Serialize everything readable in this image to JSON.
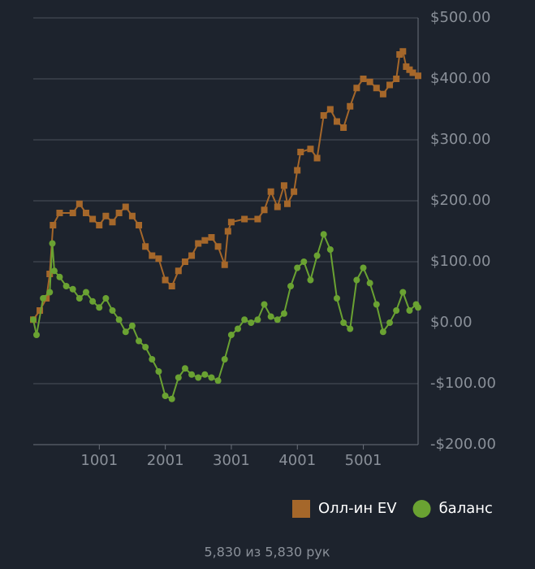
{
  "chart_data": {
    "type": "line",
    "xlim": [
      1,
      5830
    ],
    "ylim": [
      -200,
      500
    ],
    "xticks": [
      1001,
      2001,
      3001,
      4001,
      5001
    ],
    "yticks": [
      {
        "value": -200,
        "label": "-$200.00"
      },
      {
        "value": -100,
        "label": "-$100.00"
      },
      {
        "value": 0,
        "label": "$0.00"
      },
      {
        "value": 100,
        "label": "$100.00"
      },
      {
        "value": 200,
        "label": "$200.00"
      },
      {
        "value": 300,
        "label": "$300.00"
      },
      {
        "value": 400,
        "label": "$400.00"
      },
      {
        "value": 500,
        "label": "$500.00"
      }
    ],
    "grid": true,
    "legend": "bottom-right",
    "series": [
      {
        "name": "Олл-ин EV",
        "color": "#a5672a",
        "marker": "square",
        "x": [
          1,
          100,
          200,
          250,
          300,
          400,
          600,
          700,
          800,
          900,
          1000,
          1100,
          1200,
          1300,
          1400,
          1500,
          1600,
          1700,
          1800,
          1900,
          2000,
          2100,
          2200,
          2300,
          2400,
          2500,
          2600,
          2700,
          2800,
          2900,
          2950,
          3000,
          3200,
          3400,
          3500,
          3600,
          3700,
          3800,
          3850,
          3950,
          4000,
          4050,
          4200,
          4300,
          4400,
          4500,
          4600,
          4700,
          4800,
          4900,
          5000,
          5100,
          5200,
          5300,
          5400,
          5500,
          5550,
          5600,
          5650,
          5700,
          5750,
          5830
        ],
        "values": [
          5,
          20,
          40,
          80,
          160,
          180,
          180,
          195,
          180,
          170,
          160,
          175,
          165,
          180,
          190,
          175,
          160,
          125,
          110,
          105,
          70,
          60,
          85,
          100,
          110,
          130,
          135,
          140,
          125,
          95,
          150,
          165,
          170,
          170,
          185,
          215,
          190,
          225,
          195,
          215,
          250,
          280,
          285,
          270,
          340,
          350,
          330,
          320,
          355,
          385,
          400,
          395,
          385,
          375,
          390,
          400,
          440,
          445,
          420,
          415,
          410,
          405
        ]
      },
      {
        "name": "баланс",
        "color": "#6aa232",
        "marker": "circle",
        "x": [
          1,
          50,
          150,
          250,
          290,
          320,
          400,
          500,
          600,
          700,
          800,
          900,
          1000,
          1100,
          1200,
          1300,
          1400,
          1500,
          1600,
          1700,
          1800,
          1900,
          2000,
          2100,
          2200,
          2300,
          2400,
          2500,
          2600,
          2700,
          2800,
          2900,
          3000,
          3100,
          3200,
          3300,
          3400,
          3500,
          3600,
          3700,
          3800,
          3900,
          4000,
          4100,
          4200,
          4300,
          4400,
          4500,
          4600,
          4700,
          4800,
          4900,
          5000,
          5100,
          5200,
          5300,
          5400,
          5500,
          5600,
          5700,
          5800,
          5830
        ],
        "values": [
          5,
          -20,
          40,
          50,
          130,
          85,
          75,
          60,
          55,
          40,
          50,
          35,
          25,
          40,
          20,
          5,
          -15,
          -5,
          -30,
          -40,
          -60,
          -80,
          -120,
          -125,
          -90,
          -75,
          -85,
          -90,
          -85,
          -90,
          -95,
          -60,
          -20,
          -10,
          5,
          0,
          5,
          30,
          10,
          5,
          15,
          60,
          90,
          100,
          70,
          110,
          145,
          120,
          40,
          0,
          -10,
          70,
          90,
          65,
          30,
          -15,
          0,
          20,
          50,
          20,
          30,
          25
        ]
      }
    ],
    "footer": "5,830 из 5,830 рук"
  }
}
